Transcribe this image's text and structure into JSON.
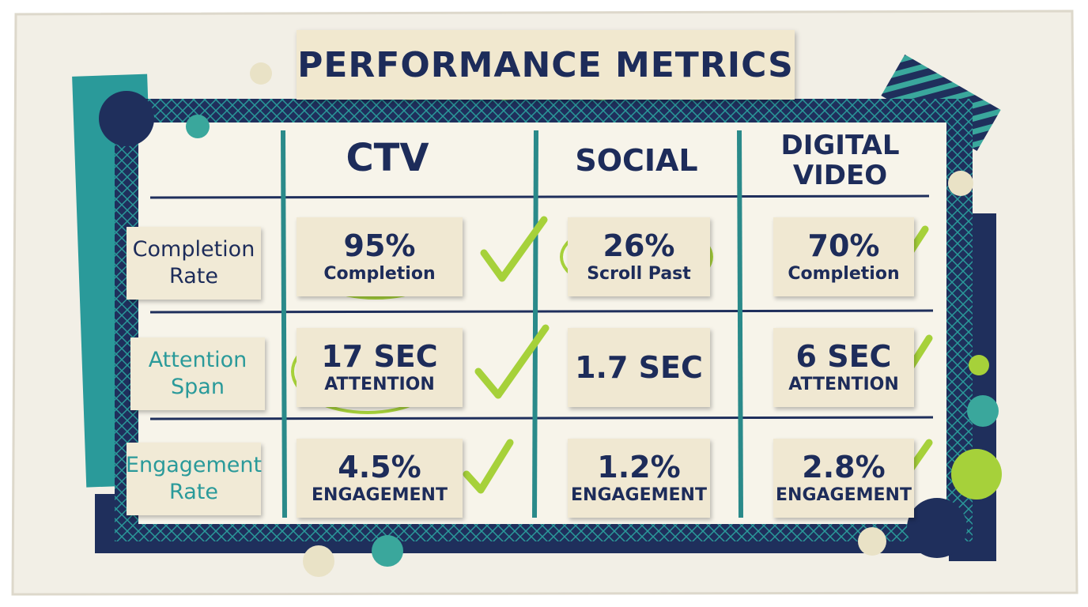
{
  "header": {
    "title": "PERFORMANCE METRICS"
  },
  "table": {
    "columns": [
      "CTV",
      "SOCIAL",
      "DIGITAL VIDEO"
    ],
    "rows": [
      {
        "label": "Completion Rate",
        "cells": [
          {
            "value": "95%",
            "note": "Completion"
          },
          {
            "value": "26%",
            "note": "Scroll Past"
          },
          {
            "value": "70%",
            "note": "Completion"
          }
        ]
      },
      {
        "label": "Attention Span",
        "cells": [
          {
            "value": "17 SEC",
            "note": "ATTENTION"
          },
          {
            "value": "1.7 SEC"
          },
          {
            "value": "6 SEC",
            "note": "ATTENTION"
          }
        ]
      },
      {
        "label": "Engagement Rate",
        "cells": [
          {
            "value": "4.5%",
            "note": "ENGAGEMENT"
          },
          {
            "value": "1.2%",
            "note": "ENGAGEMENT"
          },
          {
            "value": "2.8%",
            "note": "ENGAGEMENT"
          }
        ]
      }
    ]
  }
}
